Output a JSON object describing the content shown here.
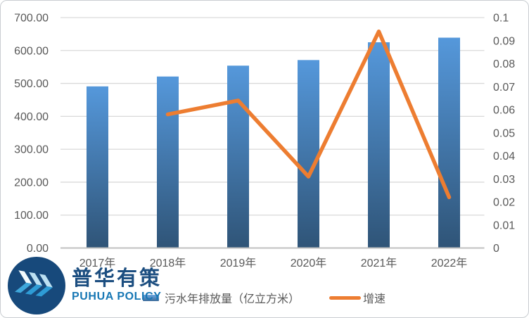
{
  "chart_data": {
    "type": "combo",
    "title": "",
    "categories": [
      "2017年",
      "2018年",
      "2019年",
      "2020年",
      "2021年",
      "2022年"
    ],
    "series": [
      {
        "name": "污水年排放量（亿立方米）",
        "type": "bar",
        "axis": "left",
        "values": [
          491,
          521,
          554,
          571,
          625,
          639
        ]
      },
      {
        "name": "增速",
        "type": "line",
        "axis": "right",
        "values": [
          null,
          0.058,
          0.064,
          0.031,
          0.094,
          0.022
        ]
      }
    ],
    "left_axis": {
      "min": 0,
      "max": 700,
      "step": 100,
      "tick_labels": [
        "0.00",
        "100.00",
        "200.00",
        "300.00",
        "400.00",
        "500.00",
        "600.00",
        "700.00"
      ]
    },
    "right_axis": {
      "min": 0,
      "max": 0.1,
      "step": 0.01,
      "tick_labels": [
        "0",
        "0.01",
        "0.02",
        "0.03",
        "0.04",
        "0.05",
        "0.06",
        "0.07",
        "0.08",
        "0.09",
        "0.1"
      ]
    },
    "grid": true,
    "legend_position": "bottom",
    "colors": {
      "bar_top": "#5598DB",
      "bar_bottom": "#2F5477",
      "line": "#ED7D31",
      "grid": "#D9D9D9",
      "axis_line": "#BFBFBF",
      "tick_text": "#595959"
    }
  },
  "legend": {
    "items": [
      {
        "label": "污水年排放量（亿立方米）",
        "swatch": "bar"
      },
      {
        "label": "增速",
        "swatch": "line"
      }
    ]
  },
  "logo": {
    "cn": "普华有策",
    "en": "PUHUA POLICY",
    "colors": {
      "circle": "#17497B",
      "chevron_light": "#E8F4FB",
      "chevron_mid": "#BCE0F2",
      "chevron_dark": "#2E9CD6",
      "cn_text": "#1C4E80",
      "en_text": "#1777B4"
    }
  }
}
